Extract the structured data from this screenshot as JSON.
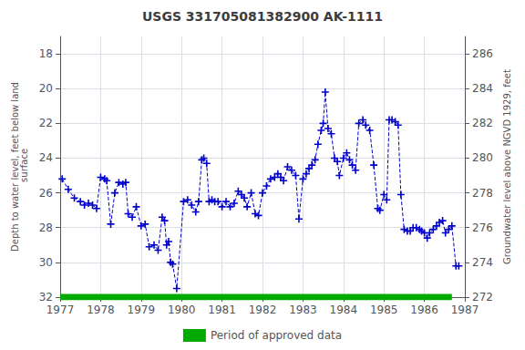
{
  "chart_data": {
    "type": "line",
    "title": "USGS 331705081382900 AK-1111",
    "y_label": "Depth to water level, feet below land\n surface",
    "y2_label": "Groundwater level above NGVD 1929, feet",
    "xlim": [
      1977.0,
      1987.0
    ],
    "xticks": [
      1977,
      1978,
      1979,
      1980,
      1981,
      1982,
      1983,
      1984,
      1985,
      1986,
      1987
    ],
    "ylim": [
      32,
      17
    ],
    "yticks": [
      18,
      20,
      22,
      24,
      26,
      28,
      30,
      32
    ],
    "y2lim": [
      272,
      287
    ],
    "y2ticks": [
      272,
      274,
      276,
      278,
      280,
      282,
      284,
      286
    ],
    "grid": true,
    "legend": "bottom",
    "series": [
      {
        "type": "line",
        "color": "#0000CC",
        "marker": "plus",
        "line_style": "dashed",
        "x": [
          1977.05,
          1977.2,
          1977.35,
          1977.5,
          1977.6,
          1977.7,
          1977.8,
          1977.9,
          1978.0,
          1978.1,
          1978.15,
          1978.25,
          1978.35,
          1978.45,
          1978.55,
          1978.62,
          1978.68,
          1978.78,
          1978.88,
          1979.0,
          1979.1,
          1979.2,
          1979.32,
          1979.42,
          1979.52,
          1979.58,
          1979.63,
          1979.68,
          1979.73,
          1979.78,
          1979.88,
          1980.05,
          1980.15,
          1980.25,
          1980.35,
          1980.42,
          1980.5,
          1980.55,
          1980.62,
          1980.68,
          1980.75,
          1980.82,
          1980.9,
          1981.0,
          1981.1,
          1981.2,
          1981.3,
          1981.4,
          1981.48,
          1981.55,
          1981.62,
          1981.72,
          1981.82,
          1981.9,
          1982.0,
          1982.1,
          1982.2,
          1982.3,
          1982.38,
          1982.45,
          1982.52,
          1982.62,
          1982.72,
          1982.82,
          1982.9,
          1983.0,
          1983.08,
          1983.15,
          1983.22,
          1983.3,
          1983.37,
          1983.45,
          1983.5,
          1983.55,
          1983.62,
          1983.7,
          1983.78,
          1983.85,
          1983.9,
          1984.0,
          1984.08,
          1984.15,
          1984.22,
          1984.3,
          1984.38,
          1984.48,
          1984.55,
          1984.65,
          1984.75,
          1984.85,
          1984.9,
          1985.0,
          1985.07,
          1985.13,
          1985.2,
          1985.28,
          1985.35,
          1985.42,
          1985.5,
          1985.58,
          1985.65,
          1985.72,
          1985.8,
          1985.88,
          1985.93,
          1986.0,
          1986.07,
          1986.13,
          1986.22,
          1986.3,
          1986.37,
          1986.45,
          1986.52,
          1986.6,
          1986.68,
          1986.78,
          1986.85
        ],
        "values": [
          25.2,
          25.8,
          26.3,
          26.5,
          26.7,
          26.6,
          26.7,
          26.9,
          25.1,
          25.2,
          25.3,
          27.8,
          26.0,
          25.4,
          25.5,
          25.4,
          27.2,
          27.4,
          26.8,
          27.9,
          27.8,
          29.1,
          29.0,
          29.3,
          27.4,
          27.6,
          29.0,
          28.8,
          30.0,
          30.1,
          31.5,
          26.5,
          26.4,
          26.7,
          27.1,
          26.5,
          24.1,
          24.0,
          24.3,
          26.5,
          26.4,
          26.5,
          26.5,
          26.8,
          26.5,
          26.8,
          26.6,
          25.9,
          26.1,
          26.3,
          26.8,
          26.0,
          27.2,
          27.3,
          26.0,
          25.6,
          25.2,
          25.1,
          24.9,
          25.1,
          25.3,
          24.5,
          24.7,
          25.0,
          27.5,
          25.2,
          24.9,
          24.6,
          24.4,
          24.1,
          23.2,
          22.4,
          22.0,
          20.2,
          22.3,
          22.6,
          24.0,
          24.2,
          25.0,
          24.0,
          23.7,
          24.1,
          24.4,
          24.7,
          22.0,
          21.8,
          22.1,
          22.4,
          24.4,
          26.9,
          27.0,
          26.1,
          26.4,
          21.8,
          21.8,
          21.9,
          22.1,
          26.1,
          28.1,
          28.2,
          28.2,
          28.0,
          28.0,
          28.1,
          28.2,
          28.3,
          28.6,
          28.3,
          28.1,
          27.9,
          27.7,
          27.6,
          28.3,
          28.1,
          27.9,
          30.2,
          30.2
        ]
      },
      {
        "type": "line",
        "name": "Period of approved data",
        "color": "#00aa00",
        "marker": "none",
        "line_style": "solid",
        "x": [
          1977.0,
          1986.68
        ],
        "values": [
          32.0,
          32.0
        ]
      }
    ]
  }
}
